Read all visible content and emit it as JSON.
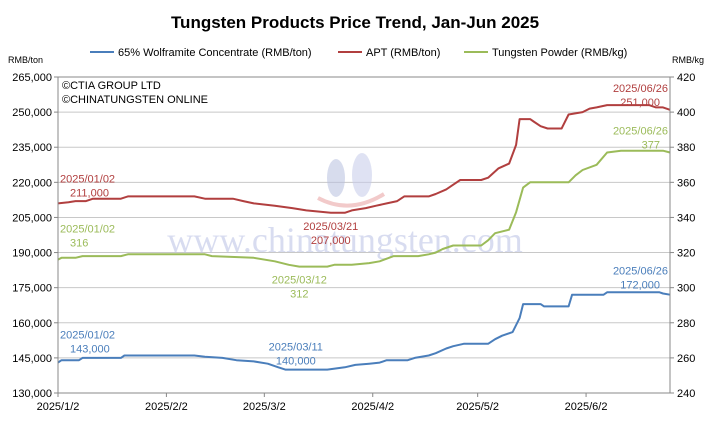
{
  "chart_data": {
    "type": "line",
    "title": "Tungsten Products Price Trend, Jan-Jun 2025",
    "y_left_unit": "RMB/ton",
    "y_right_unit": "RMB/kg",
    "y_left_range": [
      130000,
      265000
    ],
    "y_left_ticks": [
      "130,000",
      "145,000",
      "160,000",
      "175,000",
      "190,000",
      "205,000",
      "220,000",
      "235,000",
      "250,000",
      "265,000"
    ],
    "y_right_range": [
      240,
      420
    ],
    "y_right_ticks": [
      "240",
      "260",
      "280",
      "300",
      "320",
      "340",
      "360",
      "380",
      "400",
      "420"
    ],
    "x_ticks": [
      "2025/1/2",
      "2025/2/2",
      "2025/3/2",
      "2025/4/2",
      "2025/5/2",
      "2025/6/2"
    ],
    "grid": "horizontal",
    "legend_position": "top",
    "copyright": [
      "©CTIA GROUP LTD",
      "©CHINATUNGSTEN ONLINE"
    ],
    "watermark": "www.chinatungsten.com",
    "series": [
      {
        "name": "65% Wolframite Concentrate (RMB/ton)",
        "axis": "left",
        "color": "#4a7ebb",
        "values": [
          [
            "2025-01-02",
            143000
          ],
          [
            "2025-01-03",
            144000
          ],
          [
            "2025-01-08",
            144000
          ],
          [
            "2025-01-09",
            145000
          ],
          [
            "2025-01-20",
            145000
          ],
          [
            "2025-01-21",
            146000
          ],
          [
            "2025-02-07",
            146000
          ],
          [
            "2025-02-10",
            146000
          ],
          [
            "2025-02-13",
            145500
          ],
          [
            "2025-02-18",
            145000
          ],
          [
            "2025-02-22",
            144000
          ],
          [
            "2025-02-27",
            143500
          ],
          [
            "2025-03-03",
            142500
          ],
          [
            "2025-03-06",
            141000
          ],
          [
            "2025-03-08",
            140000
          ],
          [
            "2025-03-11",
            140000
          ],
          [
            "2025-03-20",
            140000
          ],
          [
            "2025-03-25",
            141000
          ],
          [
            "2025-03-28",
            142000
          ],
          [
            "2025-04-01",
            142500
          ],
          [
            "2025-04-04",
            143000
          ],
          [
            "2025-04-06",
            144000
          ],
          [
            "2025-04-12",
            144000
          ],
          [
            "2025-04-14",
            145000
          ],
          [
            "2025-04-18",
            146000
          ],
          [
            "2025-04-20",
            147000
          ],
          [
            "2025-04-23",
            149000
          ],
          [
            "2025-04-25",
            150000
          ],
          [
            "2025-04-28",
            151000
          ],
          [
            "2025-05-01",
            151000
          ],
          [
            "2025-05-05",
            151000
          ],
          [
            "2025-05-07",
            153000
          ],
          [
            "2025-05-09",
            154500
          ],
          [
            "2025-05-12",
            156000
          ],
          [
            "2025-05-14",
            162000
          ],
          [
            "2025-05-15",
            168000
          ],
          [
            "2025-05-20",
            168000
          ],
          [
            "2025-05-21",
            167000
          ],
          [
            "2025-05-28",
            167000
          ],
          [
            "2025-05-29",
            172000
          ],
          [
            "2025-06-07",
            172000
          ],
          [
            "2025-06-08",
            173000
          ],
          [
            "2025-06-23",
            173000
          ],
          [
            "2025-06-24",
            172500
          ],
          [
            "2025-06-26",
            172000
          ]
        ]
      },
      {
        "name": "APT (RMB/ton)",
        "axis": "left",
        "color": "#b13f3f",
        "values": [
          [
            "2025-01-02",
            211000
          ],
          [
            "2025-01-05",
            211500
          ],
          [
            "2025-01-07",
            212000
          ],
          [
            "2025-01-10",
            212000
          ],
          [
            "2025-01-12",
            213000
          ],
          [
            "2025-01-20",
            213000
          ],
          [
            "2025-01-22",
            214000
          ],
          [
            "2025-02-10",
            214000
          ],
          [
            "2025-02-13",
            213000
          ],
          [
            "2025-02-21",
            213000
          ],
          [
            "2025-02-24",
            212000
          ],
          [
            "2025-02-27",
            211000
          ],
          [
            "2025-03-05",
            210000
          ],
          [
            "2025-03-10",
            209000
          ],
          [
            "2025-03-14",
            208000
          ],
          [
            "2025-03-21",
            207000
          ],
          [
            "2025-03-25",
            207000
          ],
          [
            "2025-03-27",
            208000
          ],
          [
            "2025-03-31",
            209000
          ],
          [
            "2025-04-03",
            210000
          ],
          [
            "2025-04-06",
            211000
          ],
          [
            "2025-04-09",
            212000
          ],
          [
            "2025-04-11",
            214000
          ],
          [
            "2025-04-18",
            214000
          ],
          [
            "2025-04-20",
            215000
          ],
          [
            "2025-04-23",
            217000
          ],
          [
            "2025-04-25",
            219000
          ],
          [
            "2025-04-27",
            221000
          ],
          [
            "2025-05-03",
            221000
          ],
          [
            "2025-05-05",
            222000
          ],
          [
            "2025-05-08",
            226000
          ],
          [
            "2025-05-11",
            228000
          ],
          [
            "2025-05-13",
            236000
          ],
          [
            "2025-05-14",
            247000
          ],
          [
            "2025-05-17",
            247000
          ],
          [
            "2025-05-18",
            246000
          ],
          [
            "2025-05-20",
            244000
          ],
          [
            "2025-05-22",
            243000
          ],
          [
            "2025-05-26",
            243000
          ],
          [
            "2025-05-28",
            249000
          ],
          [
            "2025-06-01",
            250000
          ],
          [
            "2025-06-03",
            251500
          ],
          [
            "2025-06-05",
            252000
          ],
          [
            "2025-06-08",
            253000
          ],
          [
            "2025-06-20",
            253000
          ],
          [
            "2025-06-22",
            252000
          ],
          [
            "2025-06-24",
            252000
          ],
          [
            "2025-06-26",
            251000
          ]
        ]
      },
      {
        "name": "Tungsten Powder (RMB/kg)",
        "axis": "right",
        "color": "#9bbb59",
        "values": [
          [
            "2025-01-02",
            316
          ],
          [
            "2025-01-03",
            317
          ],
          [
            "2025-01-07",
            317
          ],
          [
            "2025-01-09",
            318
          ],
          [
            "2025-01-20",
            318
          ],
          [
            "2025-01-22",
            319
          ],
          [
            "2025-02-13",
            319
          ],
          [
            "2025-02-15",
            318
          ],
          [
            "2025-02-27",
            317
          ],
          [
            "2025-03-05",
            315
          ],
          [
            "2025-03-09",
            313
          ],
          [
            "2025-03-12",
            312
          ],
          [
            "2025-03-20",
            312
          ],
          [
            "2025-03-22",
            313
          ],
          [
            "2025-03-27",
            313
          ],
          [
            "2025-04-01",
            314
          ],
          [
            "2025-04-04",
            315
          ],
          [
            "2025-04-08",
            318
          ],
          [
            "2025-04-15",
            318
          ],
          [
            "2025-04-18",
            319
          ],
          [
            "2025-04-20",
            320
          ],
          [
            "2025-04-22",
            322
          ],
          [
            "2025-04-25",
            324
          ],
          [
            "2025-05-03",
            324
          ],
          [
            "2025-05-05",
            327
          ],
          [
            "2025-05-07",
            331
          ],
          [
            "2025-05-11",
            333
          ],
          [
            "2025-05-13",
            343
          ],
          [
            "2025-05-15",
            357
          ],
          [
            "2025-05-17",
            360
          ],
          [
            "2025-05-28",
            360
          ],
          [
            "2025-05-30",
            364
          ],
          [
            "2025-06-01",
            367
          ],
          [
            "2025-06-05",
            370
          ],
          [
            "2025-06-08",
            377
          ],
          [
            "2025-06-12",
            378
          ],
          [
            "2025-06-24",
            378
          ],
          [
            "2025-06-26",
            377
          ]
        ]
      }
    ],
    "annotations": [
      {
        "series": 0,
        "date": "2025/01/02",
        "value": "143,000",
        "at": [
          "2025-01-02",
          143000
        ]
      },
      {
        "series": 0,
        "date": "2025/03/11",
        "value": "140,000",
        "at": [
          "2025-03-11",
          140000
        ]
      },
      {
        "series": 0,
        "date": "2025/06/26",
        "value": "172,000",
        "at": [
          "2025-06-26",
          172000
        ]
      },
      {
        "series": 1,
        "date": "2025/01/02",
        "value": "211,000",
        "at": [
          "2025-01-02",
          211000
        ]
      },
      {
        "series": 1,
        "date": "2025/03/21",
        "value": "207,000",
        "at": [
          "2025-03-21",
          207000
        ]
      },
      {
        "series": 1,
        "date": "2025/06/26",
        "value": "251,000",
        "at": [
          "2025-06-26",
          251000
        ]
      },
      {
        "series": 2,
        "date": "2025/01/02",
        "value": "316",
        "at": [
          "2025-01-02",
          316
        ]
      },
      {
        "series": 2,
        "date": "2025/03/12",
        "value": "312",
        "at": [
          "2025-03-12",
          312
        ]
      },
      {
        "series": 2,
        "date": "2025/06/26",
        "value": "377",
        "at": [
          "2025-06-26",
          377
        ]
      }
    ]
  }
}
